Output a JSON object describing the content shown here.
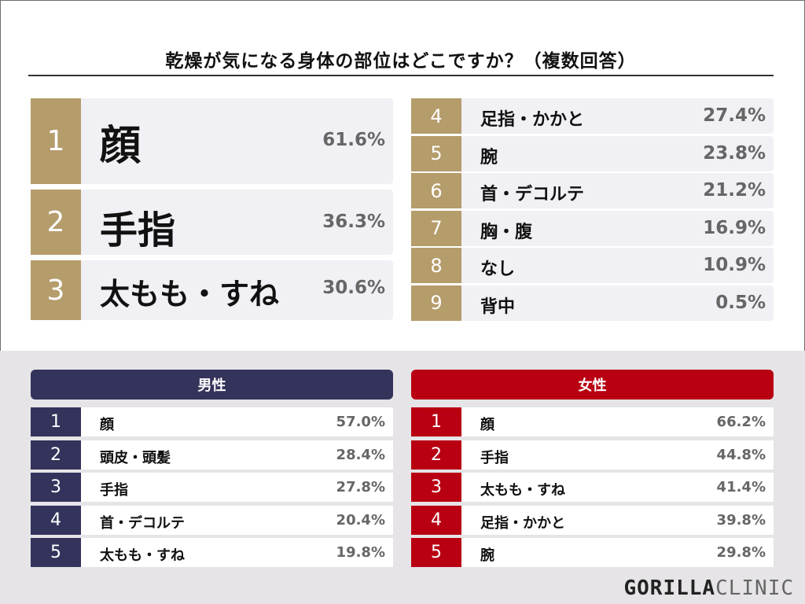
{
  "title": "乾燥が気になる身体の部位はどこですか？（複数回答）",
  "colors": {
    "gold": "#b59c6b",
    "male": "#33335c",
    "female": "#b80012"
  },
  "chart_data": [
    {
      "type": "table",
      "title": "乾燥が気になる身体の部位はどこですか？（複数回答）",
      "ranks": [
        "1",
        "2",
        "3",
        "4",
        "5",
        "6",
        "7",
        "8",
        "9"
      ],
      "categories": [
        "顔",
        "手指",
        "太もも・すね",
        "足指・かかと",
        "腕",
        "首・デコルテ",
        "胸・腹",
        "なし",
        "背中"
      ],
      "values": [
        61.6,
        36.3,
        30.6,
        27.4,
        23.8,
        21.2,
        16.9,
        10.9,
        0.5
      ],
      "labels": [
        "61.6%",
        "36.3%",
        "30.6%",
        "27.4%",
        "23.8%",
        "21.2%",
        "16.9%",
        "10.9%",
        "0.5%"
      ]
    },
    {
      "type": "table",
      "title": "男性",
      "ranks": [
        "1",
        "2",
        "3",
        "4",
        "5"
      ],
      "categories": [
        "顔",
        "頭皮・頭髪",
        "手指",
        "首・デコルテ",
        "太もも・すね"
      ],
      "values": [
        57.0,
        28.4,
        27.8,
        20.4,
        19.8
      ],
      "labels": [
        "57.0%",
        "28.4%",
        "27.8%",
        "20.4%",
        "19.8%"
      ]
    },
    {
      "type": "table",
      "title": "女性",
      "ranks": [
        "1",
        "2",
        "3",
        "4",
        "5"
      ],
      "categories": [
        "顔",
        "手指",
        "太もも・すね",
        "足指・かかと",
        "腕"
      ],
      "values": [
        66.2,
        44.8,
        41.4,
        39.8,
        29.8
      ],
      "labels": [
        "66.2%",
        "44.8%",
        "41.4%",
        "39.8%",
        "29.8%"
      ]
    }
  ],
  "logo": {
    "bold": "GORILLA",
    "thin": "CLINIC"
  }
}
